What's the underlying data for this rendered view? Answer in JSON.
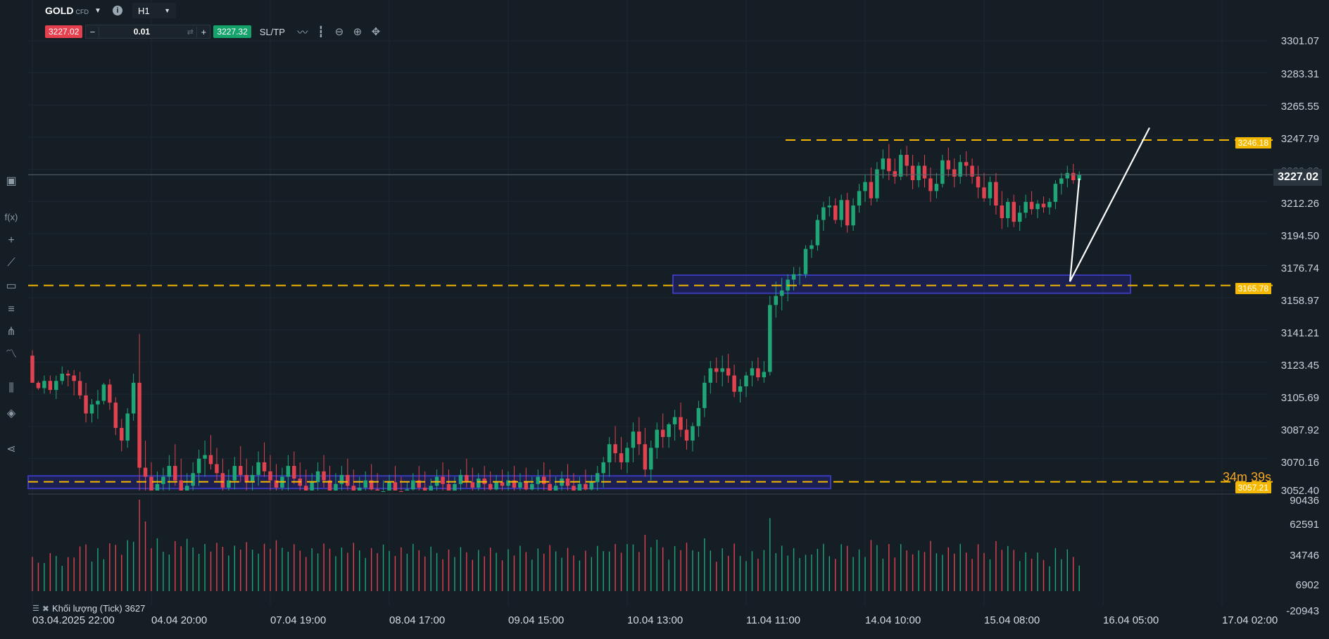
{
  "header": {
    "symbol": "GOLD",
    "symbol_type": "CFD",
    "timeframe": "H1"
  },
  "trade_bar": {
    "sell_price": "3227.02",
    "minus": "−",
    "lot_size": "0.01",
    "plus": "+",
    "buy_price": "3227.32",
    "sltp_label": "SL/TP"
  },
  "price_axis": [
    "3301.07",
    "3283.31",
    "3265.55",
    "3247.79",
    "3229.93",
    "3212.26",
    "3194.50",
    "3176.74",
    "3158.97",
    "3141.21",
    "3123.45",
    "3105.69",
    "3087.92",
    "3070.16",
    "3052.40"
  ],
  "volume_axis": [
    "90436",
    "62591",
    "34746",
    "6902",
    "-20943"
  ],
  "date_axis": [
    "03.04.2025 22:00",
    "04.04 20:00",
    "07.04 19:00",
    "08.04 17:00",
    "09.04 15:00",
    "10.04 13:00",
    "11.04 11:00",
    "14.04 10:00",
    "15.04 08:00",
    "16.04 05:00",
    "17.04 02:00"
  ],
  "current_price": "3227.02",
  "levels": [
    {
      "value": 3246.18,
      "label": "3246.18"
    },
    {
      "value": 3165.78,
      "label": "3165.78"
    },
    {
      "value": 3057.21,
      "label": "3057.21"
    }
  ],
  "countdown": "34m 39s",
  "volume_indicator": "Khối lượng (Tick) 3627",
  "colors": {
    "bull": "#1fa576",
    "bear": "#e04250",
    "level": "#f5b800",
    "zone": "#3a3ab8",
    "background": "#151d25"
  },
  "chart_data": {
    "type": "candlestick",
    "series": [
      {
        "name": "GOLD",
        "values": [
          [
            3127,
            3130,
            3112,
            3112
          ],
          [
            3112,
            3113,
            3108,
            3109
          ],
          [
            3109,
            3116,
            3106,
            3113
          ],
          [
            3113,
            3116,
            3106,
            3108
          ],
          [
            3108,
            3116,
            3103,
            3113
          ],
          [
            3113,
            3121,
            3111,
            3117
          ],
          [
            3117,
            3119,
            3110,
            3116
          ],
          [
            3116,
            3119,
            3105,
            3113
          ],
          [
            3113,
            3118,
            3103,
            3105
          ],
          [
            3105,
            3112,
            3090,
            3095
          ],
          [
            3095,
            3103,
            3090,
            3100
          ],
          [
            3100,
            3108,
            3092,
            3102
          ],
          [
            3102,
            3112,
            3100,
            3111
          ],
          [
            3111,
            3114,
            3097,
            3101
          ],
          [
            3101,
            3104,
            3083,
            3087
          ],
          [
            3087,
            3092,
            3074,
            3080
          ],
          [
            3080,
            3098,
            3076,
            3095
          ],
          [
            3095,
            3117,
            3091,
            3112
          ],
          [
            3112,
            3139,
            3045,
            3065
          ],
          [
            3065,
            3080,
            3040,
            3060
          ],
          [
            3060,
            3068,
            3045,
            3052
          ],
          [
            3052,
            3063,
            3040,
            3056
          ],
          [
            3056,
            3065,
            3048,
            3060
          ],
          [
            3060,
            3072,
            3052,
            3066
          ],
          [
            3066,
            3078,
            3055,
            3058
          ],
          [
            3058,
            3070,
            3046,
            3049
          ],
          [
            3049,
            3062,
            3040,
            3055
          ],
          [
            3055,
            3068,
            3048,
            3062
          ],
          [
            3062,
            3075,
            3055,
            3070
          ],
          [
            3070,
            3080,
            3060,
            3072
          ],
          [
            3072,
            3083,
            3064,
            3067
          ],
          [
            3067,
            3076,
            3058,
            3062
          ],
          [
            3062,
            3070,
            3050,
            3054
          ],
          [
            3054,
            3064,
            3046,
            3058
          ],
          [
            3058,
            3071,
            3053,
            3066
          ],
          [
            3066,
            3077,
            3057,
            3061
          ],
          [
            3061,
            3070,
            3052,
            3057
          ],
          [
            3057,
            3066,
            3049,
            3061
          ],
          [
            3061,
            3074,
            3055,
            3068
          ],
          [
            3068,
            3079,
            3060,
            3063
          ],
          [
            3063,
            3072,
            3052,
            3058
          ],
          [
            3058,
            3067,
            3048,
            3054
          ],
          [
            3054,
            3065,
            3047,
            3060
          ],
          [
            3060,
            3072,
            3052,
            3066
          ],
          [
            3066,
            3074,
            3056,
            3059
          ],
          [
            3059,
            3068,
            3050,
            3055
          ],
          [
            3055,
            3064,
            3046,
            3050
          ],
          [
            3050,
            3062,
            3045,
            3057
          ],
          [
            3057,
            3068,
            3050,
            3063
          ],
          [
            3063,
            3072,
            3054,
            3058
          ],
          [
            3058,
            3066,
            3047,
            3052
          ],
          [
            3052,
            3062,
            3044,
            3056
          ],
          [
            3056,
            3066,
            3049,
            3061
          ],
          [
            3061,
            3070,
            3052,
            3055
          ],
          [
            3055,
            3064,
            3046,
            3050
          ],
          [
            3050,
            3060,
            3043,
            3054
          ],
          [
            3054,
            3063,
            3047,
            3058
          ],
          [
            3058,
            3067,
            3051,
            3053
          ],
          [
            3053,
            3062,
            3045,
            3049
          ],
          [
            3049,
            3058,
            3042,
            3052
          ],
          [
            3052,
            3061,
            3045,
            3057
          ],
          [
            3057,
            3066,
            3049,
            3052
          ],
          [
            3052,
            3060,
            3044,
            3048
          ],
          [
            3048,
            3057,
            3041,
            3053
          ],
          [
            3053,
            3062,
            3046,
            3058
          ],
          [
            3058,
            3066,
            3050,
            3054
          ],
          [
            3054,
            3063,
            3047,
            3050
          ],
          [
            3050,
            3059,
            3043,
            3055
          ],
          [
            3055,
            3064,
            3048,
            3060
          ],
          [
            3060,
            3068,
            3052,
            3056
          ],
          [
            3056,
            3064,
            3048,
            3052
          ],
          [
            3052,
            3060,
            3045,
            3056
          ],
          [
            3056,
            3064,
            3049,
            3061
          ],
          [
            3061,
            3070,
            3054,
            3057
          ],
          [
            3057,
            3065,
            3050,
            3054
          ],
          [
            3054,
            3062,
            3047,
            3059
          ],
          [
            3059,
            3066,
            3051,
            3056
          ],
          [
            3056,
            3063,
            3049,
            3053
          ],
          [
            3053,
            3061,
            3046,
            3057
          ],
          [
            3057,
            3064,
            3050,
            3055
          ],
          [
            3055,
            3063,
            3048,
            3058
          ],
          [
            3058,
            3066,
            3051,
            3054
          ],
          [
            3054,
            3062,
            3047,
            3057
          ],
          [
            3057,
            3065,
            3050,
            3053
          ],
          [
            3053,
            3060,
            3046,
            3056
          ],
          [
            3056,
            3064,
            3049,
            3060
          ],
          [
            3060,
            3068,
            3052,
            3056
          ],
          [
            3056,
            3064,
            3049,
            3052
          ],
          [
            3052,
            3060,
            3045,
            3055
          ],
          [
            3055,
            3063,
            3048,
            3059
          ],
          [
            3059,
            3067,
            3052,
            3055
          ],
          [
            3055,
            3062,
            3048,
            3052
          ],
          [
            3052,
            3060,
            3045,
            3056
          ],
          [
            3056,
            3064,
            3049,
            3053
          ],
          [
            3053,
            3061,
            3046,
            3057
          ],
          [
            3057,
            3066,
            3050,
            3062
          ],
          [
            3062,
            3071,
            3054,
            3068
          ],
          [
            3068,
            3082,
            3060,
            3078
          ],
          [
            3078,
            3088,
            3068,
            3073
          ],
          [
            3073,
            3082,
            3064,
            3068
          ],
          [
            3068,
            3079,
            3062,
            3076
          ],
          [
            3076,
            3090,
            3068,
            3085
          ],
          [
            3085,
            3093,
            3072,
            3078
          ],
          [
            3078,
            3087,
            3060,
            3064
          ],
          [
            3064,
            3080,
            3058,
            3076
          ],
          [
            3076,
            3090,
            3070,
            3086
          ],
          [
            3086,
            3095,
            3076,
            3082
          ],
          [
            3082,
            3090,
            3076,
            3089
          ],
          [
            3089,
            3097,
            3080,
            3093
          ],
          [
            3093,
            3101,
            3082,
            3086
          ],
          [
            3086,
            3092,
            3075,
            3080
          ],
          [
            3080,
            3090,
            3074,
            3088
          ],
          [
            3088,
            3102,
            3082,
            3098
          ],
          [
            3098,
            3116,
            3093,
            3112
          ],
          [
            3112,
            3124,
            3106,
            3120
          ],
          [
            3120,
            3126,
            3112,
            3118
          ],
          [
            3118,
            3127,
            3110,
            3120
          ],
          [
            3120,
            3128,
            3112,
            3116
          ],
          [
            3116,
            3122,
            3104,
            3107
          ],
          [
            3107,
            3114,
            3101,
            3110
          ],
          [
            3110,
            3118,
            3104,
            3116
          ],
          [
            3116,
            3124,
            3110,
            3120
          ],
          [
            3120,
            3126,
            3113,
            3115
          ],
          [
            3115,
            3124,
            3112,
            3118
          ],
          [
            3118,
            3160,
            3116,
            3155
          ],
          [
            3155,
            3168,
            3148,
            3160
          ],
          [
            3160,
            3170,
            3152,
            3163
          ],
          [
            3163,
            3172,
            3157,
            3169
          ],
          [
            3169,
            3176,
            3163,
            3172
          ],
          [
            3172,
            3176,
            3166,
            3172
          ],
          [
            3172,
            3188,
            3170,
            3186
          ],
          [
            3186,
            3191,
            3181,
            3188
          ],
          [
            3188,
            3205,
            3185,
            3202
          ],
          [
            3202,
            3212,
            3196,
            3209
          ],
          [
            3209,
            3215,
            3204,
            3210
          ],
          [
            3210,
            3214,
            3200,
            3202
          ],
          [
            3202,
            3216,
            3198,
            3213
          ],
          [
            3213,
            3217,
            3195,
            3199
          ],
          [
            3199,
            3214,
            3196,
            3210
          ],
          [
            3210,
            3222,
            3206,
            3218
          ],
          [
            3218,
            3227,
            3212,
            3223
          ],
          [
            3223,
            3231,
            3210,
            3214
          ],
          [
            3214,
            3234,
            3212,
            3230
          ],
          [
            3230,
            3241,
            3225,
            3236
          ],
          [
            3236,
            3244,
            3224,
            3229
          ],
          [
            3229,
            3236,
            3222,
            3226
          ],
          [
            3226,
            3241,
            3224,
            3238
          ],
          [
            3238,
            3243,
            3226,
            3232
          ],
          [
            3232,
            3238,
            3219,
            3224
          ],
          [
            3224,
            3234,
            3220,
            3232
          ],
          [
            3232,
            3238,
            3220,
            3225
          ],
          [
            3225,
            3231,
            3212,
            3218
          ],
          [
            3218,
            3228,
            3214,
            3222
          ],
          [
            3222,
            3238,
            3220,
            3235
          ],
          [
            3235,
            3242,
            3226,
            3230
          ],
          [
            3230,
            3236,
            3220,
            3226
          ],
          [
            3226,
            3238,
            3222,
            3234
          ],
          [
            3234,
            3240,
            3226,
            3232
          ],
          [
            3232,
            3236,
            3222,
            3226
          ],
          [
            3226,
            3232,
            3214,
            3220
          ],
          [
            3220,
            3228,
            3212,
            3214
          ],
          [
            3214,
            3226,
            3210,
            3223
          ],
          [
            3223,
            3228,
            3205,
            3210
          ],
          [
            3210,
            3218,
            3197,
            3203
          ],
          [
            3203,
            3214,
            3198,
            3212
          ],
          [
            3212,
            3216,
            3198,
            3201
          ],
          [
            3201,
            3210,
            3196,
            3206
          ],
          [
            3206,
            3216,
            3203,
            3212
          ],
          [
            3212,
            3218,
            3205,
            3208
          ],
          [
            3208,
            3213,
            3203,
            3211
          ],
          [
            3211,
            3215,
            3206,
            3209
          ],
          [
            3209,
            3214,
            3205,
            3212
          ],
          [
            3212,
            3224,
            3208,
            3222
          ],
          [
            3222,
            3228,
            3216,
            3225
          ],
          [
            3225,
            3232,
            3220,
            3228
          ],
          [
            3228,
            3233,
            3222,
            3224
          ],
          [
            3224,
            3229,
            3220,
            3227
          ]
        ]
      }
    ],
    "xlabel": "",
    "ylabel": "",
    "ylim": [
      3047.0,
      3305.0
    ]
  }
}
